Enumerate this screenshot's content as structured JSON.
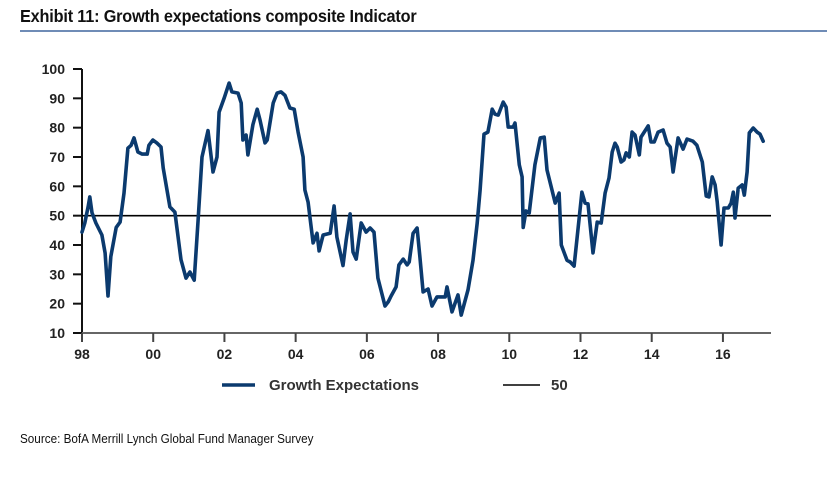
{
  "header": {
    "title": "Exhibit 11: Growth expectations composite Indicator"
  },
  "footer": {
    "source": "Source: BofA Merrill Lynch Global Fund Manager Survey"
  },
  "colors": {
    "series": "#0b3a6e",
    "reference_line": "#000000",
    "title_rule": "#6f8cb6"
  },
  "chart_data": {
    "type": "line",
    "title": "Exhibit 11: Growth expectations composite Indicator",
    "xlabel": "",
    "ylabel": "",
    "xlim": [
      1998,
      2017.35
    ],
    "ylim": [
      10,
      100
    ],
    "grid": false,
    "legend_position": "bottom",
    "x_ticks": [
      {
        "value": 1998,
        "label": "98"
      },
      {
        "value": 2000,
        "label": "00"
      },
      {
        "value": 2002,
        "label": "02"
      },
      {
        "value": 2004,
        "label": "04"
      },
      {
        "value": 2006,
        "label": "06"
      },
      {
        "value": 2008,
        "label": "08"
      },
      {
        "value": 2010,
        "label": "10"
      },
      {
        "value": 2012,
        "label": "12"
      },
      {
        "value": 2014,
        "label": "14"
      },
      {
        "value": 2016,
        "label": "16"
      }
    ],
    "y_ticks": [
      {
        "value": 10,
        "label": "10"
      },
      {
        "value": 20,
        "label": "20"
      },
      {
        "value": 30,
        "label": "30"
      },
      {
        "value": 40,
        "label": "40"
      },
      {
        "value": 50,
        "label": "50"
      },
      {
        "value": 60,
        "label": "60"
      },
      {
        "value": 70,
        "label": "70"
      },
      {
        "value": 80,
        "label": "80"
      },
      {
        "value": 90,
        "label": "90"
      },
      {
        "value": 100,
        "label": "100"
      }
    ],
    "series": [
      {
        "name": "Growth Expectations",
        "color": "#0b3a6e",
        "points": [
          [
            1998.0,
            44.4
          ],
          [
            1998.08,
            47.5
          ],
          [
            1998.17,
            53.0
          ],
          [
            1998.22,
            56.4
          ],
          [
            1998.28,
            51.0
          ],
          [
            1998.39,
            47.5
          ],
          [
            1998.56,
            43.4
          ],
          [
            1998.65,
            37.3
          ],
          [
            1998.73,
            22.6
          ],
          [
            1998.81,
            36.0
          ],
          [
            1998.96,
            46.0
          ],
          [
            1999.07,
            47.8
          ],
          [
            1999.18,
            57.7
          ],
          [
            1999.29,
            73.0
          ],
          [
            1999.38,
            74.0
          ],
          [
            1999.46,
            76.5
          ],
          [
            1999.57,
            71.7
          ],
          [
            1999.69,
            71.0
          ],
          [
            1999.83,
            71.0
          ],
          [
            1999.88,
            74.0
          ],
          [
            1999.99,
            75.8
          ],
          [
            2000.11,
            74.7
          ],
          [
            2000.22,
            73.4
          ],
          [
            2000.28,
            66.3
          ],
          [
            2000.47,
            53.0
          ],
          [
            2000.61,
            51.2
          ],
          [
            2000.78,
            35.0
          ],
          [
            2000.92,
            28.7
          ],
          [
            2001.03,
            30.8
          ],
          [
            2001.15,
            28.0
          ],
          [
            2001.26,
            48.5
          ],
          [
            2001.37,
            70.0
          ],
          [
            2001.54,
            79.0
          ],
          [
            2001.68,
            64.9
          ],
          [
            2001.79,
            70.0
          ],
          [
            2001.85,
            85.3
          ],
          [
            2001.99,
            90.0
          ],
          [
            2002.13,
            95.2
          ],
          [
            2002.21,
            92.2
          ],
          [
            2002.38,
            91.8
          ],
          [
            2002.47,
            88.4
          ],
          [
            2002.52,
            75.8
          ],
          [
            2002.61,
            77.5
          ],
          [
            2002.66,
            70.7
          ],
          [
            2002.8,
            81.0
          ],
          [
            2002.92,
            86.3
          ],
          [
            2003.0,
            82.6
          ],
          [
            2003.14,
            74.8
          ],
          [
            2003.2,
            75.8
          ],
          [
            2003.37,
            88.4
          ],
          [
            2003.48,
            91.8
          ],
          [
            2003.59,
            92.2
          ],
          [
            2003.7,
            91.0
          ],
          [
            2003.84,
            86.7
          ],
          [
            2003.96,
            86.3
          ],
          [
            2004.07,
            78.5
          ],
          [
            2004.21,
            70.0
          ],
          [
            2004.26,
            58.7
          ],
          [
            2004.35,
            54.6
          ],
          [
            2004.49,
            40.7
          ],
          [
            2004.6,
            44.0
          ],
          [
            2004.66,
            38.0
          ],
          [
            2004.77,
            43.4
          ],
          [
            2004.97,
            44.0
          ],
          [
            2005.08,
            53.3
          ],
          [
            2005.16,
            42.7
          ],
          [
            2005.33,
            33.0
          ],
          [
            2005.42,
            41.7
          ],
          [
            2005.53,
            50.6
          ],
          [
            2005.61,
            37.6
          ],
          [
            2005.7,
            35.2
          ],
          [
            2005.84,
            47.5
          ],
          [
            2005.98,
            44.4
          ],
          [
            2006.09,
            45.8
          ],
          [
            2006.2,
            44.4
          ],
          [
            2006.31,
            28.7
          ],
          [
            2006.51,
            19.2
          ],
          [
            2006.6,
            20.6
          ],
          [
            2006.68,
            22.6
          ],
          [
            2006.82,
            25.7
          ],
          [
            2006.9,
            33.2
          ],
          [
            2007.02,
            35.2
          ],
          [
            2007.13,
            33.2
          ],
          [
            2007.19,
            34.2
          ],
          [
            2007.3,
            44.0
          ],
          [
            2007.41,
            45.8
          ],
          [
            2007.49,
            35.9
          ],
          [
            2007.58,
            24.0
          ],
          [
            2007.72,
            25.0
          ],
          [
            2007.83,
            19.2
          ],
          [
            2007.97,
            22.3
          ],
          [
            2008.2,
            22.3
          ],
          [
            2008.25,
            25.7
          ],
          [
            2008.39,
            17.2
          ],
          [
            2008.56,
            23.0
          ],
          [
            2008.65,
            16.1
          ],
          [
            2008.84,
            24.7
          ],
          [
            2008.98,
            34.8
          ],
          [
            2009.1,
            47.5
          ],
          [
            2009.18,
            58.7
          ],
          [
            2009.29,
            77.8
          ],
          [
            2009.4,
            78.5
          ],
          [
            2009.52,
            86.3
          ],
          [
            2009.6,
            84.6
          ],
          [
            2009.69,
            84.3
          ],
          [
            2009.83,
            88.7
          ],
          [
            2009.91,
            87.0
          ],
          [
            2009.97,
            80.2
          ],
          [
            2010.11,
            80.2
          ],
          [
            2010.16,
            81.6
          ],
          [
            2010.28,
            67.3
          ],
          [
            2010.36,
            63.2
          ],
          [
            2010.39,
            46.0
          ],
          [
            2010.47,
            51.6
          ],
          [
            2010.56,
            50.9
          ],
          [
            2010.72,
            67.3
          ],
          [
            2010.87,
            76.5
          ],
          [
            2010.98,
            76.8
          ],
          [
            2011.06,
            65.6
          ],
          [
            2011.2,
            58.7
          ],
          [
            2011.29,
            54.3
          ],
          [
            2011.4,
            57.7
          ],
          [
            2011.46,
            40.0
          ],
          [
            2011.62,
            34.8
          ],
          [
            2011.71,
            34.2
          ],
          [
            2011.82,
            32.8
          ],
          [
            2012.04,
            58.0
          ],
          [
            2012.13,
            54.3
          ],
          [
            2012.21,
            54.0
          ],
          [
            2012.35,
            37.3
          ],
          [
            2012.47,
            47.8
          ],
          [
            2012.58,
            47.5
          ],
          [
            2012.69,
            57.7
          ],
          [
            2012.8,
            62.8
          ],
          [
            2012.89,
            71.7
          ],
          [
            2012.97,
            74.7
          ],
          [
            2013.03,
            73.4
          ],
          [
            2013.14,
            68.3
          ],
          [
            2013.22,
            69.0
          ],
          [
            2013.28,
            71.4
          ],
          [
            2013.37,
            70.0
          ],
          [
            2013.45,
            78.5
          ],
          [
            2013.53,
            77.5
          ],
          [
            2013.65,
            70.7
          ],
          [
            2013.7,
            76.8
          ],
          [
            2013.81,
            78.9
          ],
          [
            2013.9,
            80.6
          ],
          [
            2013.98,
            75.1
          ],
          [
            2014.07,
            75.1
          ],
          [
            2014.18,
            78.5
          ],
          [
            2014.32,
            79.2
          ],
          [
            2014.43,
            74.7
          ],
          [
            2014.52,
            73.4
          ],
          [
            2014.6,
            64.9
          ],
          [
            2014.74,
            76.5
          ],
          [
            2014.88,
            72.7
          ],
          [
            2014.99,
            76.1
          ],
          [
            2015.16,
            75.4
          ],
          [
            2015.27,
            74.0
          ],
          [
            2015.42,
            68.3
          ],
          [
            2015.53,
            56.7
          ],
          [
            2015.61,
            56.4
          ],
          [
            2015.7,
            63.2
          ],
          [
            2015.78,
            60.5
          ],
          [
            2015.84,
            54.7
          ],
          [
            2015.95,
            40.0
          ],
          [
            2016.03,
            52.6
          ],
          [
            2016.15,
            52.6
          ],
          [
            2016.23,
            54.3
          ],
          [
            2016.29,
            58.0
          ],
          [
            2016.34,
            49.2
          ],
          [
            2016.43,
            59.4
          ],
          [
            2016.54,
            60.5
          ],
          [
            2016.6,
            57.0
          ],
          [
            2016.68,
            64.9
          ],
          [
            2016.74,
            78.2
          ],
          [
            2016.85,
            79.9
          ],
          [
            2016.96,
            78.5
          ],
          [
            2017.04,
            77.8
          ],
          [
            2017.13,
            75.4
          ]
        ]
      },
      {
        "name": "50",
        "color": "#000000",
        "constant": 50
      }
    ],
    "legend": [
      {
        "label": "Growth Expectations",
        "color": "#0b3a6e",
        "style": "thick"
      },
      {
        "label": "50",
        "color": "#000000",
        "style": "thin"
      }
    ]
  }
}
